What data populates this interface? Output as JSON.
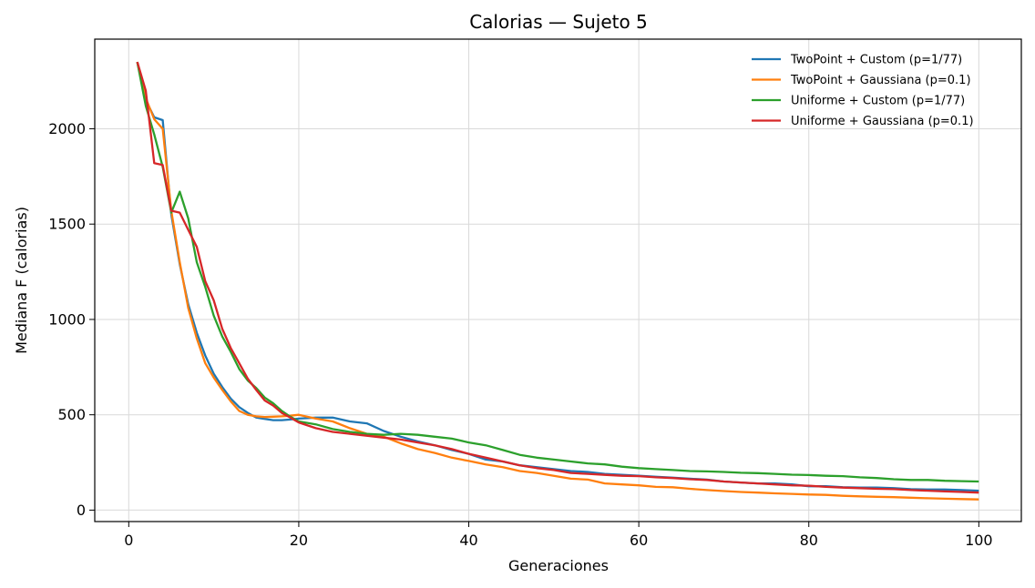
{
  "chart_data": {
    "type": "line",
    "title": "Calorias — Sujeto 5",
    "xlabel": "Generaciones",
    "ylabel": "Mediana F (calorias)",
    "xlim": [
      -4,
      105
    ],
    "ylim": [
      -60,
      2470
    ],
    "xticks": [
      0,
      20,
      40,
      60,
      80,
      100
    ],
    "yticks": [
      0,
      500,
      1000,
      1500,
      2000
    ],
    "grid": true,
    "legend_position": "top-right",
    "series": [
      {
        "name": "TwoPoint + Custom (p=1/77)",
        "color": "#1f77b4",
        "x": [
          1,
          2,
          3,
          4,
          5,
          6,
          7,
          8,
          9,
          10,
          11,
          12,
          13,
          14,
          15,
          16,
          17,
          18,
          19,
          20,
          22,
          24,
          26,
          28,
          30,
          32,
          34,
          36,
          38,
          40,
          42,
          44,
          46,
          48,
          50,
          52,
          54,
          56,
          58,
          60,
          62,
          64,
          66,
          68,
          70,
          72,
          74,
          76,
          78,
          80,
          82,
          84,
          86,
          88,
          90,
          92,
          94,
          96,
          98,
          100
        ],
        "y": [
          2350,
          2150,
          2060,
          2045,
          1550,
          1290,
          1080,
          930,
          810,
          715,
          645,
          585,
          540,
          510,
          485,
          478,
          472,
          472,
          475,
          480,
          485,
          485,
          465,
          455,
          415,
          385,
          360,
          340,
          315,
          295,
          265,
          255,
          235,
          225,
          215,
          205,
          200,
          190,
          185,
          180,
          175,
          170,
          165,
          160,
          150,
          145,
          140,
          140,
          135,
          125,
          125,
          120,
          118,
          118,
          115,
          110,
          108,
          108,
          105,
          102
        ]
      },
      {
        "name": "TwoPoint + Gaussiana (p=0.1)",
        "color": "#ff7f0e",
        "x": [
          1,
          2,
          3,
          4,
          5,
          6,
          7,
          8,
          9,
          10,
          11,
          12,
          13,
          14,
          15,
          16,
          17,
          18,
          19,
          20,
          22,
          24,
          26,
          28,
          30,
          32,
          34,
          36,
          38,
          40,
          42,
          44,
          46,
          48,
          50,
          52,
          54,
          56,
          58,
          60,
          62,
          64,
          66,
          68,
          70,
          72,
          74,
          76,
          78,
          80,
          82,
          84,
          86,
          88,
          90,
          92,
          94,
          96,
          98,
          100
        ],
        "y": [
          2350,
          2160,
          2050,
          2000,
          1570,
          1300,
          1060,
          900,
          770,
          695,
          630,
          570,
          520,
          500,
          492,
          488,
          490,
          492,
          495,
          500,
          480,
          465,
          430,
          400,
          385,
          350,
          320,
          300,
          275,
          258,
          240,
          225,
          205,
          195,
          180,
          165,
          160,
          140,
          135,
          130,
          122,
          120,
          112,
          105,
          100,
          95,
          92,
          88,
          85,
          82,
          80,
          75,
          72,
          70,
          68,
          65,
          62,
          60,
          58,
          56
        ]
      },
      {
        "name": "Uniforme + Custom (p=1/77)",
        "color": "#2ca02c",
        "x": [
          1,
          2,
          3,
          4,
          5,
          6,
          7,
          8,
          9,
          10,
          11,
          12,
          13,
          14,
          15,
          16,
          17,
          18,
          19,
          20,
          22,
          24,
          26,
          28,
          30,
          32,
          34,
          36,
          38,
          40,
          42,
          44,
          46,
          48,
          50,
          52,
          54,
          56,
          58,
          60,
          62,
          64,
          66,
          68,
          70,
          72,
          74,
          76,
          78,
          80,
          82,
          84,
          86,
          88,
          90,
          92,
          94,
          96,
          98,
          100
        ],
        "y": [
          2350,
          2120,
          1970,
          1800,
          1560,
          1670,
          1530,
          1300,
          1170,
          1020,
          910,
          830,
          740,
          680,
          640,
          590,
          560,
          520,
          490,
          465,
          450,
          425,
          410,
          400,
          395,
          400,
          395,
          385,
          375,
          355,
          340,
          315,
          290,
          275,
          265,
          255,
          245,
          240,
          228,
          220,
          215,
          210,
          205,
          203,
          200,
          196,
          194,
          190,
          186,
          184,
          180,
          178,
          172,
          168,
          162,
          158,
          158,
          154,
          152,
          150
        ]
      },
      {
        "name": "Uniforme + Gaussiana (p=0.1)",
        "color": "#d62728",
        "x": [
          1,
          2,
          3,
          4,
          5,
          6,
          7,
          8,
          9,
          10,
          11,
          12,
          13,
          14,
          15,
          16,
          17,
          18,
          19,
          20,
          22,
          24,
          26,
          28,
          30,
          32,
          34,
          36,
          38,
          40,
          42,
          44,
          46,
          48,
          50,
          52,
          54,
          56,
          58,
          60,
          62,
          64,
          66,
          68,
          70,
          72,
          74,
          76,
          78,
          80,
          82,
          84,
          86,
          88,
          90,
          92,
          94,
          96,
          98,
          100
        ],
        "y": [
          2350,
          2200,
          1820,
          1810,
          1570,
          1560,
          1470,
          1380,
          1200,
          1100,
          950,
          850,
          770,
          690,
          630,
          575,
          548,
          510,
          485,
          460,
          430,
          410,
          400,
          390,
          380,
          370,
          355,
          340,
          320,
          295,
          275,
          255,
          235,
          220,
          210,
          195,
          190,
          185,
          180,
          178,
          172,
          168,
          162,
          158,
          150,
          145,
          140,
          135,
          130,
          128,
          122,
          118,
          115,
          112,
          110,
          105,
          102,
          98,
          95,
          92
        ]
      }
    ]
  }
}
